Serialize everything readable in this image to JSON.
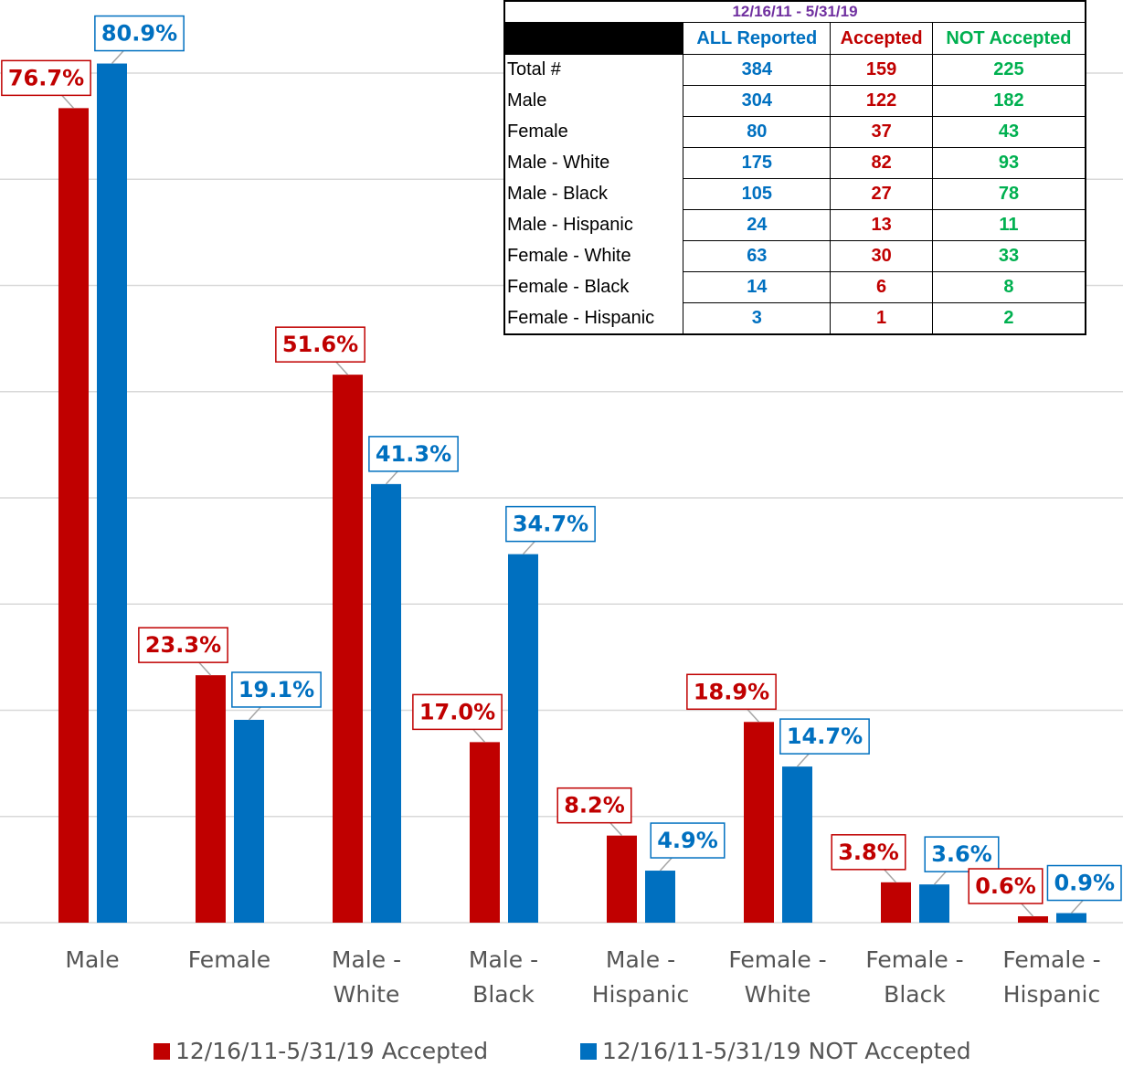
{
  "chart_data": {
    "type": "bar",
    "categories": [
      "Male",
      "Female",
      "Male - White",
      "Male - Black",
      "Male - Hispanic",
      "Female - White",
      "Female - Black",
      "Female - Hispanic"
    ],
    "series": [
      {
        "name": "12/16/11-5/31/19 Accepted",
        "color": "#c00000",
        "values": [
          76.7,
          23.3,
          51.6,
          17.0,
          8.2,
          18.9,
          3.8,
          0.6
        ],
        "value_labels": [
          "76.7%",
          "23.3%",
          "51.6%",
          "17.0%",
          "8.2%",
          "18.9%",
          "3.8%",
          "0.6%"
        ]
      },
      {
        "name": "12/16/11-5/31/19 NOT Accepted",
        "color": "#0070c0",
        "values": [
          80.9,
          19.1,
          41.3,
          34.7,
          4.9,
          14.7,
          3.6,
          0.9
        ],
        "value_labels": [
          "80.9%",
          "19.1%",
          "41.3%",
          "34.7%",
          "4.9%",
          "14.7%",
          "3.6%",
          "0.9%"
        ]
      }
    ],
    "ylim": [
      0,
      80
    ],
    "yticks": [
      0,
      10,
      20,
      30,
      40,
      50,
      60,
      70,
      80
    ],
    "grid": true,
    "legend": "bottom"
  },
  "table": {
    "title": "12/16/11 - 5/31/19",
    "columns": [
      "ALL Reported",
      "Accepted",
      "NOT Accepted"
    ],
    "rows": [
      [
        "Total #",
        "384",
        "159",
        "225"
      ],
      [
        "Male",
        "304",
        "122",
        "182"
      ],
      [
        "Female",
        "80",
        "37",
        "43"
      ],
      [
        "Male - White",
        "175",
        "82",
        "93"
      ],
      [
        "Male - Black",
        "105",
        "27",
        "78"
      ],
      [
        "Male - Hispanic",
        "24",
        "13",
        "11"
      ],
      [
        "Female - White",
        "63",
        "30",
        "33"
      ],
      [
        "Female - Black",
        "14",
        "6",
        "8"
      ],
      [
        "Female - Hispanic",
        "3",
        "1",
        "2"
      ]
    ]
  }
}
